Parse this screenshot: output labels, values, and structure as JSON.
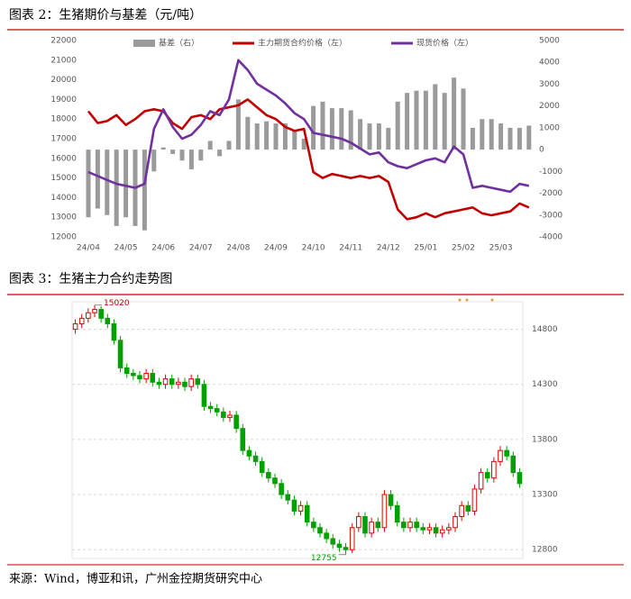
{
  "chart_data": [
    {
      "type": "combo",
      "title": "图表 2：生猪期价与基差（元/吨）",
      "categories": [
        "24/04",
        null,
        null,
        null,
        "24/05",
        null,
        null,
        null,
        "24/06",
        null,
        null,
        null,
        "24/07",
        null,
        null,
        null,
        "24/08",
        null,
        null,
        null,
        "24/09",
        null,
        null,
        null,
        "24/10",
        null,
        null,
        null,
        "24/11",
        null,
        null,
        null,
        "24/12",
        null,
        null,
        null,
        "25/01",
        null,
        null,
        null,
        "25/02",
        null,
        null,
        null,
        "25/03",
        null,
        null,
        null
      ],
      "series": [
        {
          "name": "基差（右）",
          "type": "bar",
          "axis": "y2",
          "color": "#9a9a9a",
          "values": [
            -3100,
            -2700,
            -3000,
            -3500,
            -3100,
            -3500,
            -3700,
            -1000,
            100,
            -200,
            -500,
            -900,
            -500,
            400,
            -300,
            400,
            2300,
            1500,
            1200,
            1300,
            1200,
            1200,
            900,
            500,
            2000,
            2200,
            1900,
            1900,
            1800,
            1400,
            1200,
            1200,
            1000,
            2200,
            2600,
            2700,
            2700,
            3000,
            2600,
            3300,
            2800,
            1000,
            1400,
            1400,
            1200,
            1000,
            1000,
            1100
          ]
        },
        {
          "name": "主力期货合约价格（左）",
          "type": "line",
          "color": "#c00000",
          "values": [
            18400,
            17800,
            17900,
            18200,
            17700,
            18000,
            18400,
            18500,
            18400,
            17800,
            17500,
            18100,
            18200,
            18000,
            18500,
            18600,
            18700,
            19000,
            18600,
            18200,
            18000,
            17600,
            17400,
            17500,
            15300,
            15000,
            15200,
            15100,
            15000,
            15100,
            15000,
            15100,
            14800,
            13400,
            12900,
            13000,
            13200,
            13000,
            13200,
            13300,
            13400,
            13500,
            13200,
            13100,
            13200,
            13300,
            13700,
            13500
          ]
        },
        {
          "name": "现货价格（左）",
          "type": "line",
          "color": "#7030a0",
          "values": [
            15300,
            15100,
            14900,
            14700,
            14600,
            14500,
            14700,
            17500,
            18500,
            17600,
            17000,
            17200,
            17700,
            18400,
            18200,
            19000,
            21000,
            20500,
            19800,
            19500,
            19200,
            18800,
            18300,
            18000,
            17300,
            17200,
            17100,
            17000,
            16800,
            16500,
            16200,
            16300,
            15800,
            15600,
            15500,
            15700,
            15900,
            16000,
            15800,
            16600,
            16200,
            14500,
            14600,
            14500,
            14400,
            14300,
            14700,
            14600
          ]
        }
      ],
      "ylim": [
        12000,
        22000
      ],
      "yticks": [
        12000,
        13000,
        14000,
        15000,
        16000,
        17000,
        18000,
        19000,
        20000,
        21000,
        22000
      ],
      "y2lim": [
        -4000,
        5000
      ],
      "y2ticks": [
        -4000,
        -3000,
        -2000,
        -1000,
        0,
        1000,
        2000,
        3000,
        4000,
        5000
      ]
    },
    {
      "type": "candlestick",
      "title": "图表 3：生猪主力合约走势图",
      "open": [
        14800,
        14850,
        14900,
        14950,
        14980,
        14900,
        14850,
        14700,
        14450,
        14400,
        14380,
        14350,
        14400,
        14320,
        14300,
        14350,
        14300,
        14320,
        14280,
        14350,
        14300,
        14100,
        14080,
        14050,
        14000,
        14020,
        13900,
        13700,
        13650,
        13600,
        13500,
        13450,
        13400,
        13300,
        13250,
        13150,
        13200,
        13050,
        13000,
        12950,
        12900,
        12850,
        12820,
        12800,
        13000,
        13100,
        12950,
        13050,
        13000,
        13300,
        13200,
        13050,
        13000,
        13050,
        13000,
        12980,
        13000,
        12950,
        12980,
        13000,
        13100,
        13200,
        13150,
        13350,
        13500,
        13450,
        13600,
        13700,
        13650,
        13500
      ],
      "high": [
        14890,
        14940,
        14990,
        15020,
        15010,
        14940,
        14890,
        14740,
        14490,
        14440,
        14420,
        14440,
        14440,
        14360,
        14390,
        14390,
        14360,
        14360,
        14390,
        14390,
        14340,
        14140,
        14120,
        14090,
        14060,
        14060,
        13940,
        13740,
        13690,
        13640,
        13540,
        13490,
        13440,
        13340,
        13290,
        13240,
        13240,
        13090,
        13040,
        12990,
        12940,
        12890,
        12860,
        13040,
        13140,
        13140,
        13090,
        13090,
        13340,
        13340,
        13240,
        13090,
        13090,
        13090,
        13040,
        13040,
        13040,
        13020,
        13040,
        13140,
        13240,
        13240,
        13390,
        13540,
        13540,
        13640,
        13740,
        13740,
        13690,
        13540
      ],
      "low": [
        14760,
        14810,
        14860,
        14910,
        14860,
        14810,
        14660,
        14410,
        14360,
        14340,
        14310,
        14310,
        14280,
        14260,
        14260,
        14260,
        14260,
        14240,
        14240,
        14260,
        14060,
        14040,
        14010,
        13960,
        13960,
        13860,
        13660,
        13610,
        13560,
        13460,
        13410,
        13360,
        13260,
        13210,
        13110,
        13110,
        13010,
        12960,
        12910,
        12860,
        12810,
        12780,
        12755,
        12770,
        12960,
        12910,
        12910,
        12960,
        12960,
        13160,
        13010,
        12960,
        12960,
        12960,
        12940,
        12940,
        12910,
        12910,
        12940,
        12960,
        13060,
        13110,
        13110,
        13310,
        13410,
        13410,
        13560,
        13610,
        13460,
        13360
      ],
      "close": [
        14850,
        14900,
        14950,
        14980,
        14900,
        14850,
        14700,
        14450,
        14400,
        14380,
        14350,
        14400,
        14320,
        14300,
        14350,
        14300,
        14320,
        14280,
        14350,
        14300,
        14100,
        14080,
        14050,
        14000,
        14020,
        13900,
        13700,
        13650,
        13600,
        13500,
        13450,
        13400,
        13300,
        13250,
        13150,
        13200,
        13050,
        13000,
        12950,
        12900,
        12850,
        12820,
        12800,
        13000,
        13100,
        12950,
        13050,
        13000,
        13300,
        13200,
        13050,
        13000,
        13050,
        13000,
        12980,
        13000,
        12950,
        12980,
        13000,
        13100,
        13200,
        13150,
        13350,
        13500,
        13450,
        13600,
        13700,
        13650,
        13500,
        13400
      ],
      "up_color": "#e00000",
      "down_color": "#00a000",
      "ylim": [
        12720,
        15050
      ],
      "yticks": [
        12800,
        13300,
        13800,
        14300,
        14800
      ],
      "grid": true,
      "max_label": 15020,
      "min_label": 12755
    }
  ],
  "source": "来源：Wind，博亚和讯，广州金控期货研究中心"
}
